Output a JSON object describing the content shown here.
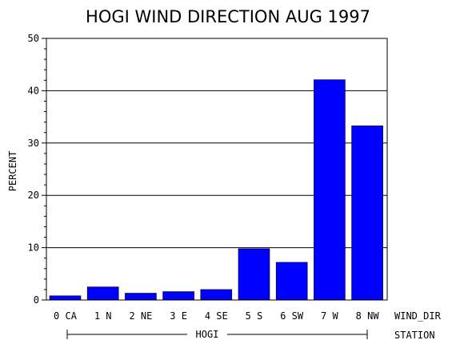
{
  "chart_data": {
    "type": "bar",
    "title": "HOGI WIND DIRECTION AUG 1997",
    "ylabel": "PERCENT",
    "xlabel": "WIND_DIR",
    "group_axis_label": "STATION",
    "group_label": "HOGI",
    "categories": [
      "0 CA",
      "1 N",
      "2 NE",
      "3 E",
      "4 SE",
      "5 S",
      "6 SW",
      "7 W",
      "8 NW"
    ],
    "values": [
      0.8,
      2.5,
      1.3,
      1.6,
      2.0,
      9.8,
      7.2,
      42.1,
      33.3
    ],
    "ylim": [
      0,
      50
    ],
    "yticks": [
      "0",
      "10",
      "20",
      "30",
      "40",
      "50"
    ],
    "grid": true,
    "bar_color": "#0000ff"
  }
}
